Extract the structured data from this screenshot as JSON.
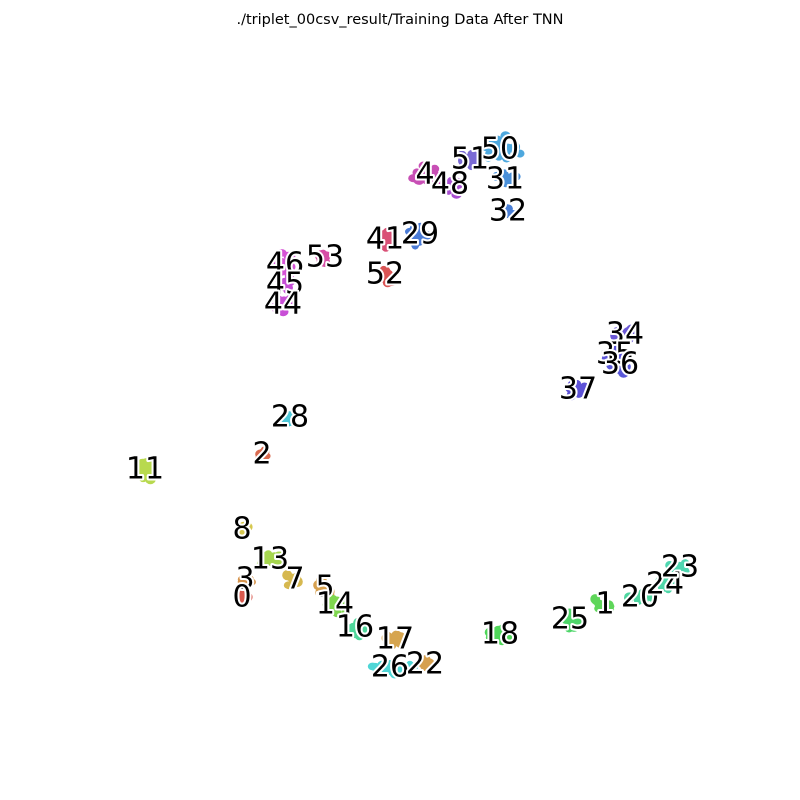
{
  "chart_data": {
    "type": "scatter",
    "title": "./triplet_00csv_result/Training Data After TNN",
    "axes_visible": false,
    "grid": false,
    "legend": "none",
    "xlim": [
      0,
      800
    ],
    "ylim": [
      800,
      0
    ],
    "clusters": [
      {
        "label": "50",
        "color": "#4ea8de",
        "cx": 500,
        "cy": 150,
        "spread": [
          22,
          15
        ],
        "n": 30
      },
      {
        "label": "31",
        "color": "#4a90d9",
        "cx": 505,
        "cy": 180,
        "spread": [
          16,
          10
        ],
        "n": 18
      },
      {
        "label": "32",
        "color": "#4a7fd6",
        "cx": 508,
        "cy": 212,
        "spread": [
          8,
          8
        ],
        "n": 8
      },
      {
        "label": "51",
        "color": "#7a6ad4",
        "cx": 470,
        "cy": 160,
        "spread": [
          12,
          10
        ],
        "n": 12
      },
      {
        "label": "48",
        "color": "#a84fd1",
        "cx": 450,
        "cy": 185,
        "spread": [
          14,
          12
        ],
        "n": 14
      },
      {
        "label": "4",
        "color": "#c84fb5",
        "cx": 425,
        "cy": 175,
        "spread": [
          20,
          12
        ],
        "n": 14
      },
      {
        "label": "41",
        "color": "#d95076",
        "cx": 385,
        "cy": 240,
        "spread": [
          18,
          12
        ],
        "n": 12
      },
      {
        "label": "29",
        "color": "#4a7bd6",
        "cx": 420,
        "cy": 235,
        "spread": [
          15,
          14
        ],
        "n": 16
      },
      {
        "label": "52",
        "color": "#d95555",
        "cx": 385,
        "cy": 275,
        "spread": [
          10,
          12
        ],
        "n": 12
      },
      {
        "label": "46",
        "color": "#d654d6",
        "cx": 285,
        "cy": 265,
        "spread": [
          12,
          15
        ],
        "n": 26
      },
      {
        "label": "53",
        "color": "#d64fa6",
        "cx": 325,
        "cy": 258,
        "spread": [
          8,
          8
        ],
        "n": 8
      },
      {
        "label": "45",
        "color": "#c54fd6",
        "cx": 285,
        "cy": 285,
        "spread": [
          10,
          10
        ],
        "n": 14
      },
      {
        "label": "44",
        "color": "#c84fd6",
        "cx": 283,
        "cy": 305,
        "spread": [
          10,
          10
        ],
        "n": 14
      },
      {
        "label": "34",
        "color": "#6b58d6",
        "cx": 625,
        "cy": 335,
        "spread": [
          12,
          10
        ],
        "n": 12
      },
      {
        "label": "35",
        "color": "#5d55d8",
        "cx": 615,
        "cy": 355,
        "spread": [
          12,
          10
        ],
        "n": 12
      },
      {
        "label": "36",
        "color": "#5a58d9",
        "cx": 620,
        "cy": 365,
        "spread": [
          12,
          10
        ],
        "n": 12
      },
      {
        "label": "37",
        "color": "#5d52d6",
        "cx": 578,
        "cy": 390,
        "spread": [
          18,
          8
        ],
        "n": 18
      },
      {
        "label": "28",
        "color": "#4fc9d9",
        "cx": 290,
        "cy": 418,
        "spread": [
          10,
          8
        ],
        "n": 16
      },
      {
        "label": "2",
        "color": "#d96a4f",
        "cx": 262,
        "cy": 455,
        "spread": [
          6,
          8
        ],
        "n": 8
      },
      {
        "label": "11",
        "color": "#b8d94f",
        "cx": 145,
        "cy": 470,
        "spread": [
          14,
          12
        ],
        "n": 24
      },
      {
        "label": "8",
        "color": "#d6c84f",
        "cx": 242,
        "cy": 530,
        "spread": [
          10,
          8
        ],
        "n": 10
      },
      {
        "label": "13",
        "color": "#a6d64f",
        "cx": 270,
        "cy": 560,
        "spread": [
          18,
          12
        ],
        "n": 18
      },
      {
        "label": "7",
        "color": "#d6b84f",
        "cx": 295,
        "cy": 580,
        "spread": [
          10,
          10
        ],
        "n": 10
      },
      {
        "label": "3",
        "color": "#d6954f",
        "cx": 245,
        "cy": 580,
        "spread": [
          8,
          8
        ],
        "n": 8
      },
      {
        "label": "0",
        "color": "#d95a4f",
        "cx": 242,
        "cy": 598,
        "spread": [
          8,
          8
        ],
        "n": 8
      },
      {
        "label": "5",
        "color": "#d6a04f",
        "cx": 325,
        "cy": 588,
        "spread": [
          10,
          10
        ],
        "n": 12
      },
      {
        "label": "14",
        "color": "#7fd64f",
        "cx": 335,
        "cy": 605,
        "spread": [
          16,
          10
        ],
        "n": 16
      },
      {
        "label": "16",
        "color": "#4fd69b",
        "cx": 355,
        "cy": 628,
        "spread": [
          16,
          10
        ],
        "n": 14
      },
      {
        "label": "17",
        "color": "#d6a54f",
        "cx": 395,
        "cy": 640,
        "spread": [
          14,
          10
        ],
        "n": 10
      },
      {
        "label": "26",
        "color": "#4fd6d6",
        "cx": 390,
        "cy": 668,
        "spread": [
          25,
          8
        ],
        "n": 22
      },
      {
        "label": "22",
        "color": "#d6a04f",
        "cx": 425,
        "cy": 665,
        "spread": [
          8,
          6
        ],
        "n": 6
      },
      {
        "label": "18",
        "color": "#4fd659",
        "cx": 500,
        "cy": 635,
        "spread": [
          22,
          10
        ],
        "n": 16
      },
      {
        "label": "25",
        "color": "#4fd66a",
        "cx": 570,
        "cy": 620,
        "spread": [
          20,
          10
        ],
        "n": 18
      },
      {
        "label": "1",
        "color": "#5fd65a",
        "cx": 605,
        "cy": 605,
        "spread": [
          14,
          10
        ],
        "n": 12
      },
      {
        "label": "20",
        "color": "#4fd6a0",
        "cx": 640,
        "cy": 598,
        "spread": [
          16,
          8
        ],
        "n": 14
      },
      {
        "label": "24",
        "color": "#4fd6a8",
        "cx": 665,
        "cy": 585,
        "spread": [
          14,
          10
        ],
        "n": 14
      },
      {
        "label": "23",
        "color": "#4fd6b0",
        "cx": 680,
        "cy": 568,
        "spread": [
          14,
          10
        ],
        "n": 12
      }
    ]
  }
}
